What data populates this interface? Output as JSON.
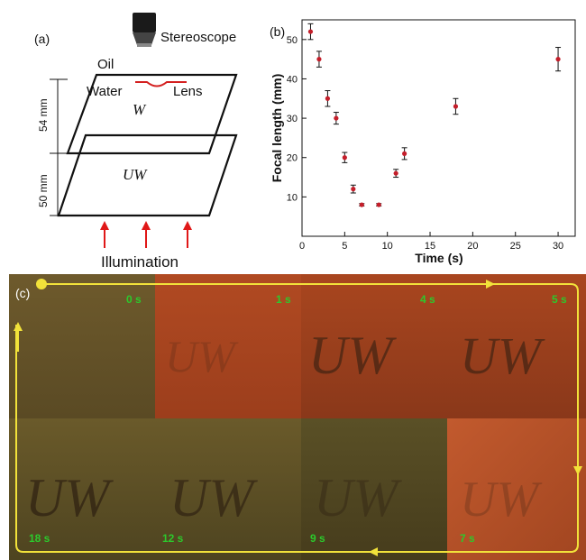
{
  "panel_a": {
    "label": "(a)",
    "stereoscope": "Stereoscope",
    "oil": "Oil",
    "water": "Water",
    "lens": "Lens",
    "w_layer": "W",
    "uw_layer": "UW",
    "dim_top": "54 mm",
    "dim_bottom": "50 mm",
    "illumination": "Illumination",
    "colors": {
      "lens": "#d42020",
      "arrow": "#e01818"
    }
  },
  "panel_b": {
    "label": "(b)",
    "chart_data": {
      "type": "scatter",
      "xlabel": "Time (s)",
      "ylabel": "Focal length (mm)",
      "xlim": [
        0,
        32
      ],
      "ylim": [
        0,
        55
      ],
      "xticks": [
        0,
        5,
        10,
        15,
        20,
        25,
        30
      ],
      "yticks": [
        10,
        20,
        30,
        40,
        50
      ],
      "points": [
        {
          "x": 1,
          "y": 52,
          "err": 2
        },
        {
          "x": 2,
          "y": 45,
          "err": 2
        },
        {
          "x": 3,
          "y": 35,
          "err": 2
        },
        {
          "x": 4,
          "y": 30,
          "err": 1.5
        },
        {
          "x": 5,
          "y": 20,
          "err": 1.3
        },
        {
          "x": 6,
          "y": 12,
          "err": 1
        },
        {
          "x": 7,
          "y": 8,
          "err": 0.3
        },
        {
          "x": 9,
          "y": 8,
          "err": 0.3
        },
        {
          "x": 11,
          "y": 16,
          "err": 1
        },
        {
          "x": 12,
          "y": 21,
          "err": 1.5
        },
        {
          "x": 18,
          "y": 33,
          "err": 2
        },
        {
          "x": 30,
          "y": 45,
          "err": 3
        }
      ],
      "marker_color": "#c41e2a",
      "grid": false
    }
  },
  "panel_c": {
    "label": "(c)",
    "timestamps": {
      "t0": "0 s",
      "t1": "1 s",
      "t4": "4 s",
      "t5": "5 s",
      "t18": "18 s",
      "t12": "12 s",
      "t9": "9 s",
      "t7": "7 s"
    },
    "photo_text": "UW",
    "colors": {
      "path": "#f2e23a",
      "label": "#2cc92c"
    }
  }
}
